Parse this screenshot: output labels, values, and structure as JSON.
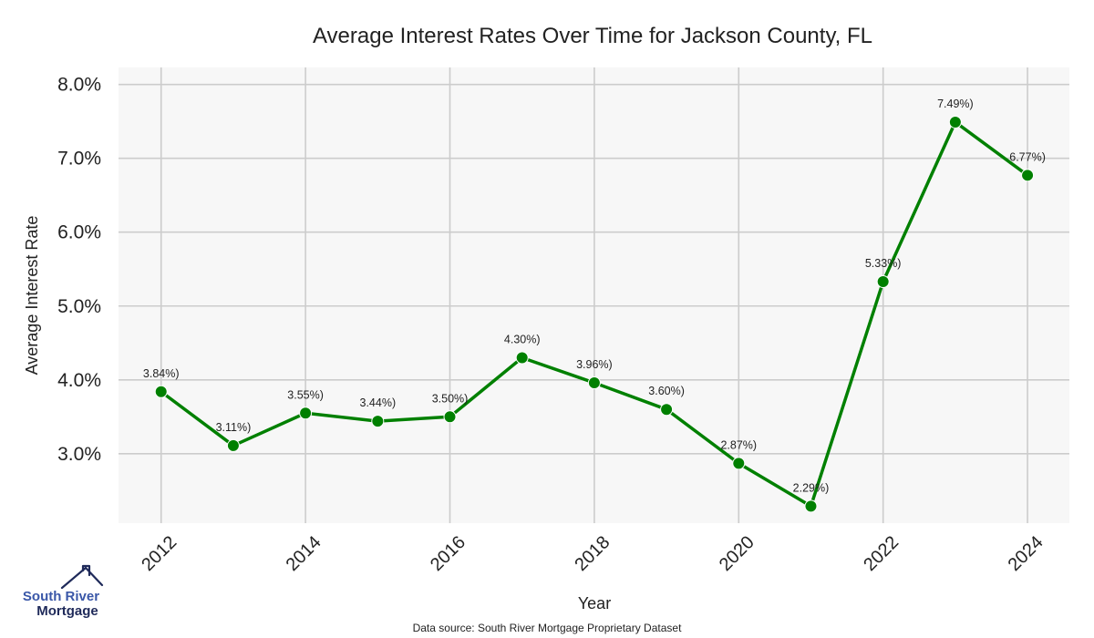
{
  "chart_data": {
    "type": "line",
    "title": "Average Interest Rates Over Time for Jackson County, FL",
    "xlabel": "Year",
    "ylabel": "Average Interest Rate",
    "x": [
      2012,
      2013,
      2014,
      2015,
      2016,
      2017,
      2018,
      2019,
      2020,
      2021,
      2022,
      2023,
      2024
    ],
    "series": [
      {
        "name": "Average Interest Rate",
        "values": [
          3.84,
          3.11,
          3.55,
          3.44,
          3.5,
          4.3,
          3.96,
          3.6,
          2.87,
          2.29,
          5.33,
          7.49,
          6.77
        ],
        "labels": [
          "3.84%)",
          "3.11%)",
          "3.55%)",
          "3.44%)",
          "3.50%)",
          "4.30%)",
          "3.96%)",
          "3.60%)",
          "2.87%)",
          "2.29%)",
          "5.33%)",
          "7.49%)",
          "6.77%)"
        ],
        "color": "#008000"
      }
    ],
    "xticks": [
      2012,
      2014,
      2016,
      2018,
      2020,
      2022,
      2024
    ],
    "xtick_labels": [
      "2012",
      "2014",
      "2016",
      "2018",
      "2020",
      "2022",
      "2024"
    ],
    "yticks": [
      3.0,
      4.0,
      5.0,
      6.0,
      7.0,
      8.0
    ],
    "ytick_labels": [
      "3.0%",
      "4.0%",
      "5.0%",
      "6.0%",
      "7.0%",
      "8.0%"
    ],
    "xlim": [
      2011.41,
      2024.58
    ],
    "ylim": [
      2.06,
      8.23
    ],
    "grid": true,
    "legend": "none",
    "background_color": "#f7f7f7",
    "grid_color": "#cccccc"
  },
  "footer": {
    "source": "Data source: South River Mortgage Proprietary Dataset"
  },
  "logo": {
    "line1": "South River",
    "line2": "Mortgage",
    "icon": "house-roof-icon",
    "color_primary": "#3a57a8",
    "color_secondary": "#1f2a5a"
  }
}
